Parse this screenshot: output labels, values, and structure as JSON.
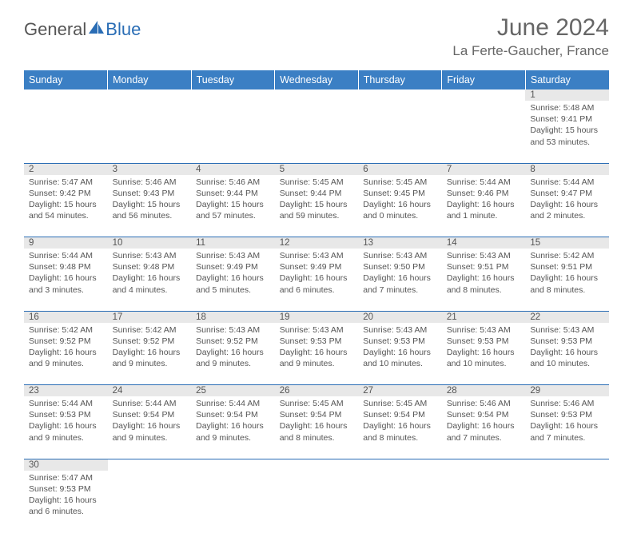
{
  "logo": {
    "general": "General",
    "blue": "Blue"
  },
  "header": {
    "month": "June 2024",
    "location": "La Ferte-Gaucher, France"
  },
  "dow": [
    "Sunday",
    "Monday",
    "Tuesday",
    "Wednesday",
    "Thursday",
    "Friday",
    "Saturday"
  ],
  "colors": {
    "header_bg": "#3b7fc4",
    "row_divider": "#2a6db5",
    "daynum_bg": "#e8e8e8"
  },
  "weeks": [
    [
      null,
      null,
      null,
      null,
      null,
      null,
      {
        "n": "1",
        "sunrise": "Sunrise: 5:48 AM",
        "sunset": "Sunset: 9:41 PM",
        "daylight": "Daylight: 15 hours and 53 minutes."
      }
    ],
    [
      {
        "n": "2",
        "sunrise": "Sunrise: 5:47 AM",
        "sunset": "Sunset: 9:42 PM",
        "daylight": "Daylight: 15 hours and 54 minutes."
      },
      {
        "n": "3",
        "sunrise": "Sunrise: 5:46 AM",
        "sunset": "Sunset: 9:43 PM",
        "daylight": "Daylight: 15 hours and 56 minutes."
      },
      {
        "n": "4",
        "sunrise": "Sunrise: 5:46 AM",
        "sunset": "Sunset: 9:44 PM",
        "daylight": "Daylight: 15 hours and 57 minutes."
      },
      {
        "n": "5",
        "sunrise": "Sunrise: 5:45 AM",
        "sunset": "Sunset: 9:44 PM",
        "daylight": "Daylight: 15 hours and 59 minutes."
      },
      {
        "n": "6",
        "sunrise": "Sunrise: 5:45 AM",
        "sunset": "Sunset: 9:45 PM",
        "daylight": "Daylight: 16 hours and 0 minutes."
      },
      {
        "n": "7",
        "sunrise": "Sunrise: 5:44 AM",
        "sunset": "Sunset: 9:46 PM",
        "daylight": "Daylight: 16 hours and 1 minute."
      },
      {
        "n": "8",
        "sunrise": "Sunrise: 5:44 AM",
        "sunset": "Sunset: 9:47 PM",
        "daylight": "Daylight: 16 hours and 2 minutes."
      }
    ],
    [
      {
        "n": "9",
        "sunrise": "Sunrise: 5:44 AM",
        "sunset": "Sunset: 9:48 PM",
        "daylight": "Daylight: 16 hours and 3 minutes."
      },
      {
        "n": "10",
        "sunrise": "Sunrise: 5:43 AM",
        "sunset": "Sunset: 9:48 PM",
        "daylight": "Daylight: 16 hours and 4 minutes."
      },
      {
        "n": "11",
        "sunrise": "Sunrise: 5:43 AM",
        "sunset": "Sunset: 9:49 PM",
        "daylight": "Daylight: 16 hours and 5 minutes."
      },
      {
        "n": "12",
        "sunrise": "Sunrise: 5:43 AM",
        "sunset": "Sunset: 9:49 PM",
        "daylight": "Daylight: 16 hours and 6 minutes."
      },
      {
        "n": "13",
        "sunrise": "Sunrise: 5:43 AM",
        "sunset": "Sunset: 9:50 PM",
        "daylight": "Daylight: 16 hours and 7 minutes."
      },
      {
        "n": "14",
        "sunrise": "Sunrise: 5:43 AM",
        "sunset": "Sunset: 9:51 PM",
        "daylight": "Daylight: 16 hours and 8 minutes."
      },
      {
        "n": "15",
        "sunrise": "Sunrise: 5:42 AM",
        "sunset": "Sunset: 9:51 PM",
        "daylight": "Daylight: 16 hours and 8 minutes."
      }
    ],
    [
      {
        "n": "16",
        "sunrise": "Sunrise: 5:42 AM",
        "sunset": "Sunset: 9:52 PM",
        "daylight": "Daylight: 16 hours and 9 minutes."
      },
      {
        "n": "17",
        "sunrise": "Sunrise: 5:42 AM",
        "sunset": "Sunset: 9:52 PM",
        "daylight": "Daylight: 16 hours and 9 minutes."
      },
      {
        "n": "18",
        "sunrise": "Sunrise: 5:43 AM",
        "sunset": "Sunset: 9:52 PM",
        "daylight": "Daylight: 16 hours and 9 minutes."
      },
      {
        "n": "19",
        "sunrise": "Sunrise: 5:43 AM",
        "sunset": "Sunset: 9:53 PM",
        "daylight": "Daylight: 16 hours and 9 minutes."
      },
      {
        "n": "20",
        "sunrise": "Sunrise: 5:43 AM",
        "sunset": "Sunset: 9:53 PM",
        "daylight": "Daylight: 16 hours and 10 minutes."
      },
      {
        "n": "21",
        "sunrise": "Sunrise: 5:43 AM",
        "sunset": "Sunset: 9:53 PM",
        "daylight": "Daylight: 16 hours and 10 minutes."
      },
      {
        "n": "22",
        "sunrise": "Sunrise: 5:43 AM",
        "sunset": "Sunset: 9:53 PM",
        "daylight": "Daylight: 16 hours and 10 minutes."
      }
    ],
    [
      {
        "n": "23",
        "sunrise": "Sunrise: 5:44 AM",
        "sunset": "Sunset: 9:53 PM",
        "daylight": "Daylight: 16 hours and 9 minutes."
      },
      {
        "n": "24",
        "sunrise": "Sunrise: 5:44 AM",
        "sunset": "Sunset: 9:54 PM",
        "daylight": "Daylight: 16 hours and 9 minutes."
      },
      {
        "n": "25",
        "sunrise": "Sunrise: 5:44 AM",
        "sunset": "Sunset: 9:54 PM",
        "daylight": "Daylight: 16 hours and 9 minutes."
      },
      {
        "n": "26",
        "sunrise": "Sunrise: 5:45 AM",
        "sunset": "Sunset: 9:54 PM",
        "daylight": "Daylight: 16 hours and 8 minutes."
      },
      {
        "n": "27",
        "sunrise": "Sunrise: 5:45 AM",
        "sunset": "Sunset: 9:54 PM",
        "daylight": "Daylight: 16 hours and 8 minutes."
      },
      {
        "n": "28",
        "sunrise": "Sunrise: 5:46 AM",
        "sunset": "Sunset: 9:54 PM",
        "daylight": "Daylight: 16 hours and 7 minutes."
      },
      {
        "n": "29",
        "sunrise": "Sunrise: 5:46 AM",
        "sunset": "Sunset: 9:53 PM",
        "daylight": "Daylight: 16 hours and 7 minutes."
      }
    ],
    [
      {
        "n": "30",
        "sunrise": "Sunrise: 5:47 AM",
        "sunset": "Sunset: 9:53 PM",
        "daylight": "Daylight: 16 hours and 6 minutes."
      },
      null,
      null,
      null,
      null,
      null,
      null
    ]
  ]
}
